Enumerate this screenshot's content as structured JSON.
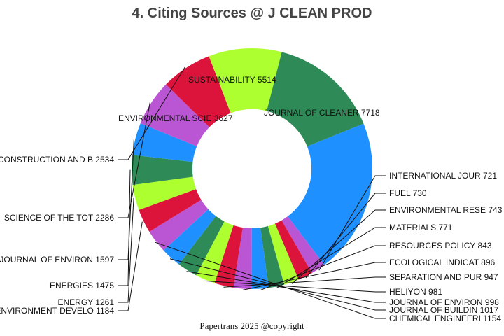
{
  "chart_data": {
    "type": "pie",
    "title": "4. Citing Sources @ J CLEAN PROD",
    "footer": "Papertrans 2025 @copyright",
    "donut": true,
    "slices": [
      {
        "label": "JOURNAL OF CLEANER",
        "value": 7718,
        "color": "#1E90FF"
      },
      {
        "label": "INTERNATIONAL JOUR",
        "value": 721,
        "color": "#BA55D3"
      },
      {
        "label": "FUEL",
        "value": 730,
        "color": "#DC143C"
      },
      {
        "label": "ENVIRONMENTAL RESE",
        "value": 743,
        "color": "#ADFF2F"
      },
      {
        "label": "MATERIALS",
        "value": 771,
        "color": "#2E8B57"
      },
      {
        "label": "RESOURCES POLICY",
        "value": 843,
        "color": "#1E90FF"
      },
      {
        "label": "ECOLOGICAL INDICAT",
        "value": 896,
        "color": "#BA55D3"
      },
      {
        "label": "SEPARATION AND PUR",
        "value": 947,
        "color": "#DC143C"
      },
      {
        "label": "HELIYON",
        "value": 981,
        "color": "#ADFF2F"
      },
      {
        "label": "JOURNAL OF ENVIRON",
        "value": 998,
        "color": "#2E8B57"
      },
      {
        "label": "JOURNAL OF BUILDIN",
        "value": 1017,
        "color": "#1E90FF"
      },
      {
        "label": "CHEMICAL ENGINEERI",
        "value": 1154,
        "color": "#BA55D3"
      },
      {
        "label": "ENVIRONMENT DEVELO",
        "value": 1184,
        "color": "#DC143C"
      },
      {
        "label": "ENERGY",
        "value": 1261,
        "color": "#ADFF2F"
      },
      {
        "label": "ENERGIES",
        "value": 1475,
        "color": "#2E8B57"
      },
      {
        "label": "JOURNAL OF ENVIRON",
        "value": 1597,
        "color": "#1E90FF"
      },
      {
        "label": "SCIENCE OF THE TOT",
        "value": 2286,
        "color": "#BA55D3"
      },
      {
        "label": "CONSTRUCTION AND B",
        "value": 2534,
        "color": "#DC143C"
      },
      {
        "label": "ENVIRONMENTAL SCIE",
        "value": 3627,
        "color": "#ADFF2F"
      },
      {
        "label": "SUSTAINABILITY",
        "value": 5514,
        "color": "#2E8B57"
      }
    ]
  }
}
